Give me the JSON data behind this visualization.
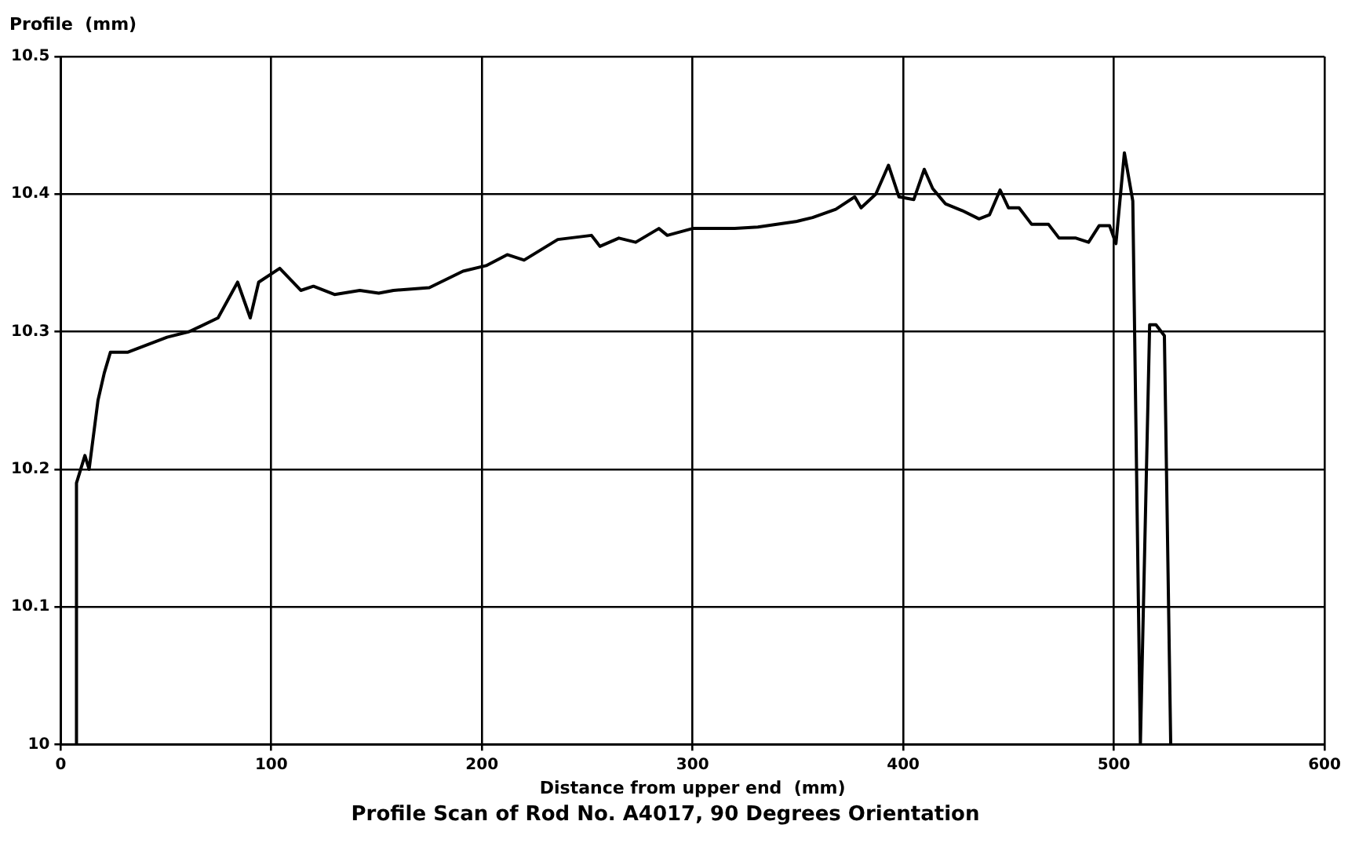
{
  "chart_data": {
    "type": "line",
    "title": "Profile Scan of Rod No. A4017, 90 Degrees Orientation",
    "xlabel": "Distance from upper end  (mm)",
    "ylabel": "Profile  (mm)",
    "xlim": [
      0,
      600
    ],
    "xticks": [
      0,
      100,
      200,
      300,
      400,
      500,
      600
    ],
    "ylim": [
      10,
      10.5
    ],
    "yticks": [
      10,
      10.1,
      10.2,
      10.3,
      10.4,
      10.5
    ],
    "grid": true,
    "legend": false,
    "marker": "none",
    "line_style": "solid",
    "series": [
      {
        "color": "#000000",
        "x": [
          7.5,
          7.5,
          11.5,
          13.5,
          17.7,
          20.7,
          23.6,
          31.7,
          50.5,
          61,
          74.7,
          84,
          90,
          94,
          104,
          114,
          120,
          130,
          142,
          151,
          158,
          175,
          191,
          202,
          212,
          220,
          236,
          252,
          256,
          265,
          273,
          284,
          288,
          300,
          312,
          320,
          331,
          349,
          357,
          368,
          377,
          380,
          387,
          393,
          398,
          405,
          410,
          414,
          420,
          428,
          436,
          441,
          446,
          450,
          455,
          461,
          469,
          474,
          482,
          488,
          493,
          498,
          501,
          505,
          509,
          512.6,
          517,
          520,
          524,
          527
        ],
        "values": [
          10,
          10.19,
          10.21,
          10.2,
          10.25,
          10.27,
          10.285,
          10.285,
          10.296,
          10.3,
          10.31,
          10.336,
          10.31,
          10.336,
          10.346,
          10.33,
          10.333,
          10.327,
          10.33,
          10.328,
          10.33,
          10.332,
          10.344,
          10.348,
          10.356,
          10.352,
          10.367,
          10.37,
          10.362,
          10.368,
          10.365,
          10.375,
          10.37,
          10.375,
          10.375,
          10.375,
          10.376,
          10.38,
          10.383,
          10.389,
          10.398,
          10.39,
          10.4,
          10.421,
          10.398,
          10.396,
          10.418,
          10.404,
          10.393,
          10.388,
          10.382,
          10.385,
          10.403,
          10.39,
          10.39,
          10.378,
          10.378,
          10.368,
          10.368,
          10.365,
          10.377,
          10.377,
          10.364,
          10.43,
          10.395,
          10,
          10.305,
          10.305,
          10.297,
          10
        ]
      }
    ]
  }
}
